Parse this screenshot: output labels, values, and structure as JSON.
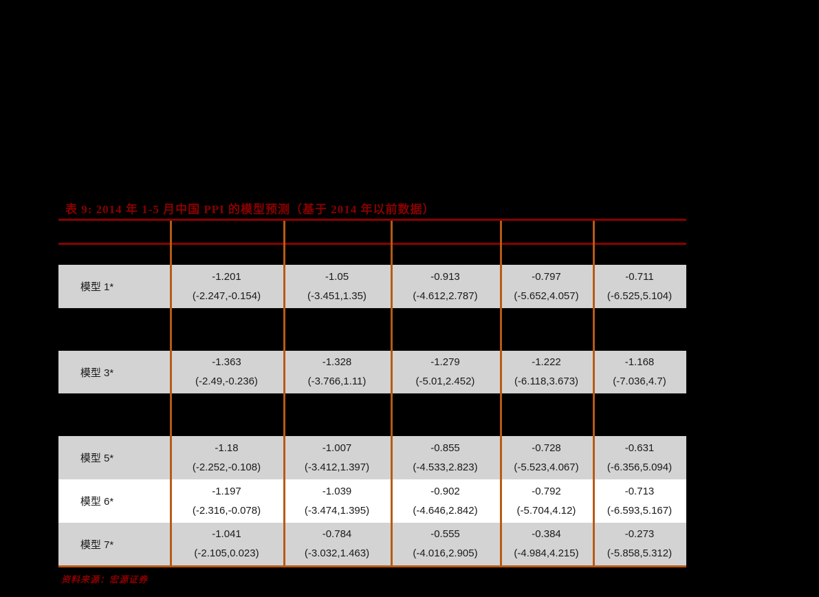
{
  "page": {
    "background_color": "#000000",
    "title": "表 9:  2014 年 1-5 月中国 PPI 的模型预测（基于 2014 年以前数据）",
    "source_note": "资料来源：宏源证券"
  },
  "colors": {
    "title_red": "#8b0000",
    "header_rule_red": "#8b0000",
    "grid_orange": "#b85a13",
    "row_gray": "#d3d3d3",
    "row_white": "#ffffff",
    "cell_text": "#1a1a1a"
  },
  "table": {
    "rows": [
      {
        "label": "模型 1*",
        "cells": [
          {
            "value": "-1.201",
            "interval": "(-2.247,-0.154)"
          },
          {
            "value": "-1.05",
            "interval": "(-3.451,1.35)"
          },
          {
            "value": "-0.913",
            "interval": "(-4.612,2.787)"
          },
          {
            "value": "-0.797",
            "interval": "(-5.652,4.057)"
          },
          {
            "value": "-0.711",
            "interval": "(-6.525,5.104)"
          }
        ]
      },
      {
        "label": "模型 3*",
        "cells": [
          {
            "value": "-1.363",
            "interval": "(-2.49,-0.236)"
          },
          {
            "value": "-1.328",
            "interval": "(-3.766,1.11)"
          },
          {
            "value": "-1.279",
            "interval": "(-5.01,2.452)"
          },
          {
            "value": "-1.222",
            "interval": "(-6.118,3.673)"
          },
          {
            "value": "-1.168",
            "interval": "(-7.036,4.7)"
          }
        ]
      },
      {
        "label": "模型 5*",
        "cells": [
          {
            "value": "-1.18",
            "interval": "(-2.252,-0.108)"
          },
          {
            "value": "-1.007",
            "interval": "(-3.412,1.397)"
          },
          {
            "value": "-0.855",
            "interval": "(-4.533,2.823)"
          },
          {
            "value": "-0.728",
            "interval": "(-5.523,4.067)"
          },
          {
            "value": "-0.631",
            "interval": "(-6.356,5.094)"
          }
        ]
      },
      {
        "label": "模型 6*",
        "cells": [
          {
            "value": "-1.197",
            "interval": "(-2.316,-0.078)"
          },
          {
            "value": "-1.039",
            "interval": "(-3.474,1.395)"
          },
          {
            "value": "-0.902",
            "interval": "(-4.646,2.842)"
          },
          {
            "value": "-0.792",
            "interval": "(-5.704,4.12)"
          },
          {
            "value": "-0.713",
            "interval": "(-6.593,5.167)"
          }
        ]
      },
      {
        "label": "模型 7*",
        "cells": [
          {
            "value": "-1.041",
            "interval": "(-2.105,0.023)"
          },
          {
            "value": "-0.784",
            "interval": "(-3.032,1.463)"
          },
          {
            "value": "-0.555",
            "interval": "(-4.016,2.905)"
          },
          {
            "value": "-0.384",
            "interval": "(-4.984,4.215)"
          },
          {
            "value": "-0.273",
            "interval": "(-5.858,5.312)"
          }
        ]
      }
    ]
  }
}
